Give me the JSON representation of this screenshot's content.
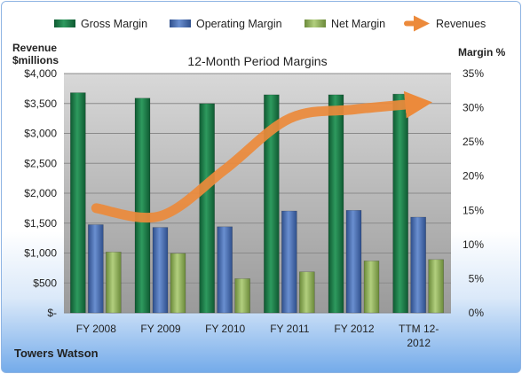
{
  "chart_data": {
    "type": "bar",
    "title": "12-Month Period Margins",
    "company_label": "Towers Watson",
    "left_axis_title": [
      "Revenue",
      "$millions"
    ],
    "right_axis_title": "Margin %",
    "categories": [
      [
        "FY 2008"
      ],
      [
        "FY 2009"
      ],
      [
        "FY 2010"
      ],
      [
        "FY 2011"
      ],
      [
        "FY 2012"
      ],
      [
        "TTM 12-",
        "2012"
      ]
    ],
    "left_axis": {
      "min": 0,
      "max": 4000,
      "ticks": [
        4000,
        3500,
        3000,
        2500,
        2000,
        1500,
        1000,
        500,
        0
      ],
      "tick_labels": [
        "$4,000",
        "$3,500",
        "$3,000",
        "$2,500",
        "$2,000",
        "$1,500",
        "$1,000",
        "$500",
        "$-"
      ]
    },
    "right_axis": {
      "min": 0,
      "max": 35,
      "ticks": [
        35,
        30,
        25,
        20,
        15,
        10,
        5,
        0
      ],
      "tick_labels": [
        "35%",
        "30%",
        "25%",
        "20%",
        "15%",
        "10%",
        "5%",
        "0%"
      ]
    },
    "series": [
      {
        "name": "Gross Margin",
        "type": "bar",
        "axis": "right",
        "color": "#217a4a",
        "values": [
          32.2,
          31.4,
          30.6,
          31.9,
          31.9,
          32.0
        ]
      },
      {
        "name": "Operating Margin",
        "type": "bar",
        "axis": "right",
        "color": "#4a6fb2",
        "values": [
          12.9,
          12.5,
          12.6,
          14.9,
          15.0,
          14.0
        ]
      },
      {
        "name": "Net Margin",
        "type": "bar",
        "axis": "right",
        "color": "#8fb35c",
        "values": [
          8.9,
          8.7,
          5.0,
          6.0,
          7.6,
          7.8
        ]
      },
      {
        "name": "Revenues",
        "type": "line",
        "axis": "left",
        "color": "#ec8a3b",
        "values": [
          1750,
          1620,
          2400,
          3250,
          3400,
          3500
        ]
      }
    ],
    "grid": true,
    "legend_position": "top"
  }
}
